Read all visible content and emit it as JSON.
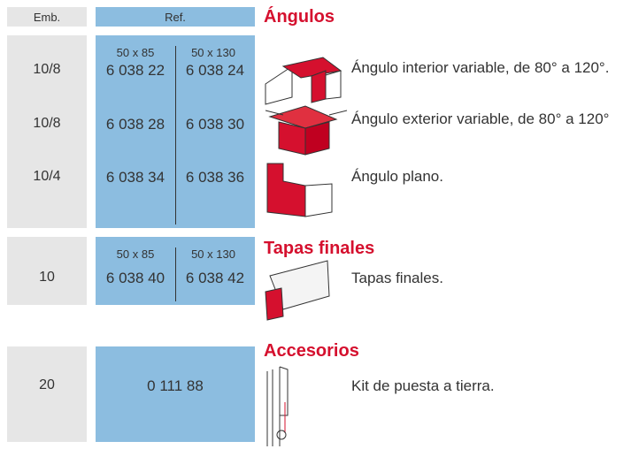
{
  "header": {
    "emb": "Emb.",
    "ref": "Ref."
  },
  "sections": [
    {
      "title": "Ángulos",
      "sizes": [
        "50 x 85",
        "50 x 130"
      ],
      "rows": [
        {
          "emb": "10/8",
          "refs": [
            "6 038 22",
            "6 038 24"
          ],
          "description": "Ángulo interior variable, de 80° a 120°."
        },
        {
          "emb": "10/8",
          "refs": [
            "6 038 28",
            "6 038 30"
          ],
          "description": "Ángulo exterior variable, de 80° a 120°"
        },
        {
          "emb": "10/4",
          "refs": [
            "6 038 34",
            "6 038 36"
          ],
          "description": "Ángulo plano."
        }
      ]
    },
    {
      "title": "Tapas finales",
      "sizes": [
        "50 x 85",
        "50 x 130"
      ],
      "rows": [
        {
          "emb": "10",
          "refs": [
            "6 038 40",
            "6 038 42"
          ],
          "description": "Tapas finales."
        }
      ]
    },
    {
      "title": "Accesorios",
      "sizes": [],
      "rows": [
        {
          "emb": "20",
          "refs": [
            "0 111 88"
          ],
          "description": "Kit de puesta a tierra."
        }
      ]
    }
  ]
}
